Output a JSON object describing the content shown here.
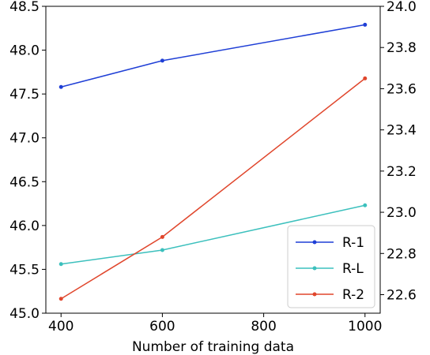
{
  "chart_data": {
    "type": "line",
    "title": "",
    "xlabel": "Number of training data",
    "ylabel_left": "",
    "ylabel_right": "",
    "x": [
      400,
      600,
      1000
    ],
    "x_ticks": [
      400,
      600,
      800,
      1000
    ],
    "x_tick_labels": [
      "400",
      "600",
      "800",
      "1000"
    ],
    "xlim": [
      370,
      1030
    ],
    "left_axis": {
      "ylim": [
        45.0,
        48.5
      ],
      "ticks": [
        45.0,
        45.5,
        46.0,
        46.5,
        47.0,
        47.5,
        48.0,
        48.5
      ],
      "tick_labels": [
        "45.0",
        "45.5",
        "46.0",
        "46.5",
        "47.0",
        "47.5",
        "48.0",
        "48.5"
      ]
    },
    "right_axis": {
      "ylim": [
        22.51,
        24.0
      ],
      "ticks": [
        22.6,
        22.8,
        23.0,
        23.2,
        23.4,
        23.6,
        23.8,
        24.0
      ],
      "tick_labels": [
        "22.6",
        "22.8",
        "23.0",
        "23.2",
        "23.4",
        "23.6",
        "23.8",
        "24.0"
      ]
    },
    "series": [
      {
        "name": "R-1",
        "axis": "left",
        "color": "#1f3fd6",
        "values": [
          47.58,
          47.88,
          48.29
        ]
      },
      {
        "name": "R-L",
        "axis": "left",
        "color": "#3cc0bd",
        "values": [
          45.56,
          45.72,
          46.23
        ]
      },
      {
        "name": "R-2",
        "axis": "right",
        "color": "#e0462c",
        "values": [
          22.58,
          22.88,
          23.65
        ]
      }
    ],
    "grid": false,
    "legend_position": "lower-right"
  }
}
